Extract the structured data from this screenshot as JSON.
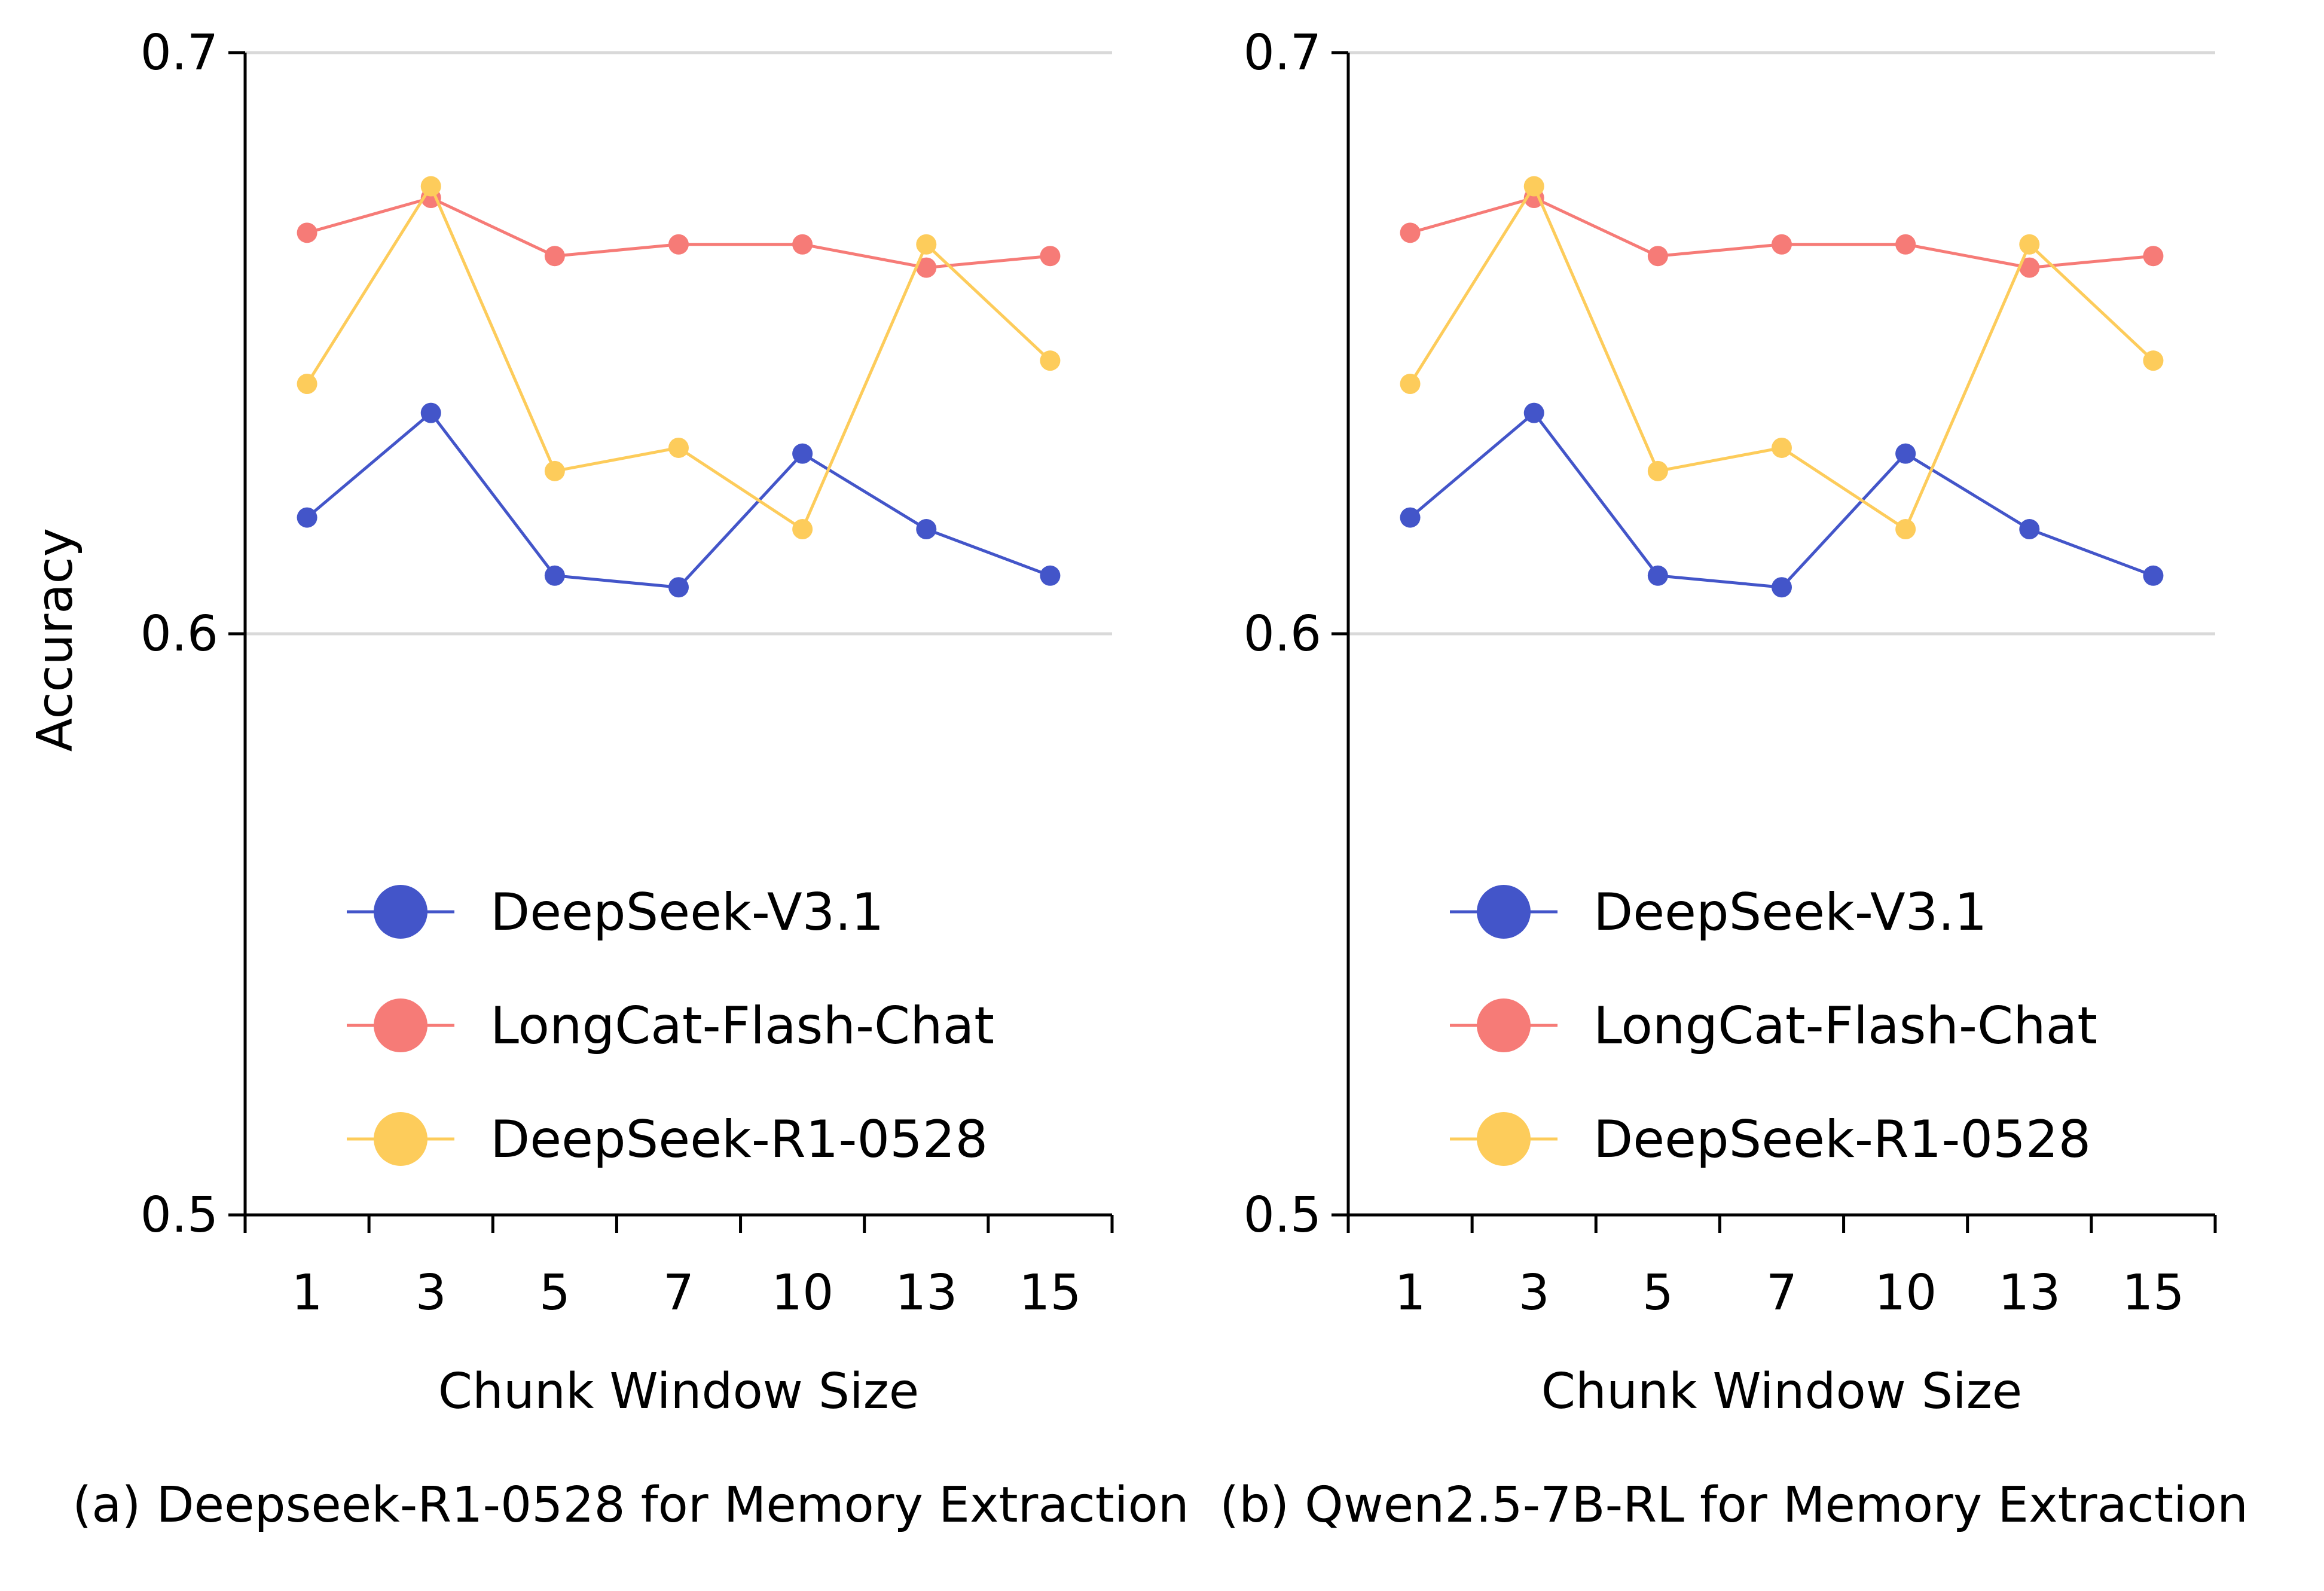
{
  "chart_data": [
    {
      "type": "line",
      "panel": "a",
      "title": "",
      "caption": "(a) Deepseek-R1-0528 for Memory Extraction",
      "xlabel": "Chunk Window Size",
      "ylabel": "Accuracy",
      "categories": [
        "1",
        "3",
        "5",
        "7",
        "10",
        "13",
        "15"
      ],
      "ylim": [
        0.5,
        0.7
      ],
      "yticks": [
        "0.5",
        "0.6",
        "0.7"
      ],
      "grid": "horizontal",
      "legend_position": "lower-left",
      "series": [
        {
          "name": "DeepSeek-V3.1",
          "color": "#4355c9",
          "values": [
            0.62,
            0.638,
            0.61,
            0.608,
            0.631,
            0.618,
            0.61
          ]
        },
        {
          "name": "LongCat-Flash-Chat",
          "color": "#f67b77",
          "values": [
            0.669,
            0.675,
            0.665,
            0.667,
            0.667,
            0.663,
            0.665
          ]
        },
        {
          "name": "DeepSeek-R1-0528",
          "color": "#fdcc5b",
          "values": [
            0.643,
            0.677,
            0.628,
            0.632,
            0.618,
            0.667,
            0.647
          ]
        }
      ]
    },
    {
      "type": "line",
      "panel": "b",
      "title": "",
      "caption": "(b) Qwen2.5-7B-RL for Memory Extraction",
      "xlabel": "Chunk Window Size",
      "ylabel": "",
      "categories": [
        "1",
        "3",
        "5",
        "7",
        "10",
        "13",
        "15"
      ],
      "ylim": [
        0.5,
        0.7
      ],
      "yticks": [
        "0.5",
        "0.6",
        "0.7"
      ],
      "grid": "horizontal",
      "legend_position": "lower-left",
      "series": [
        {
          "name": "DeepSeek-V3.1",
          "color": "#4355c9",
          "values": [
            0.62,
            0.638,
            0.61,
            0.608,
            0.631,
            0.618,
            0.61
          ]
        },
        {
          "name": "LongCat-Flash-Chat",
          "color": "#f67b77",
          "values": [
            0.669,
            0.675,
            0.665,
            0.667,
            0.667,
            0.663,
            0.665
          ]
        },
        {
          "name": "DeepSeek-R1-0528",
          "color": "#fdcc5b",
          "values": [
            0.643,
            0.677,
            0.628,
            0.632,
            0.618,
            0.667,
            0.647
          ]
        }
      ]
    }
  ]
}
